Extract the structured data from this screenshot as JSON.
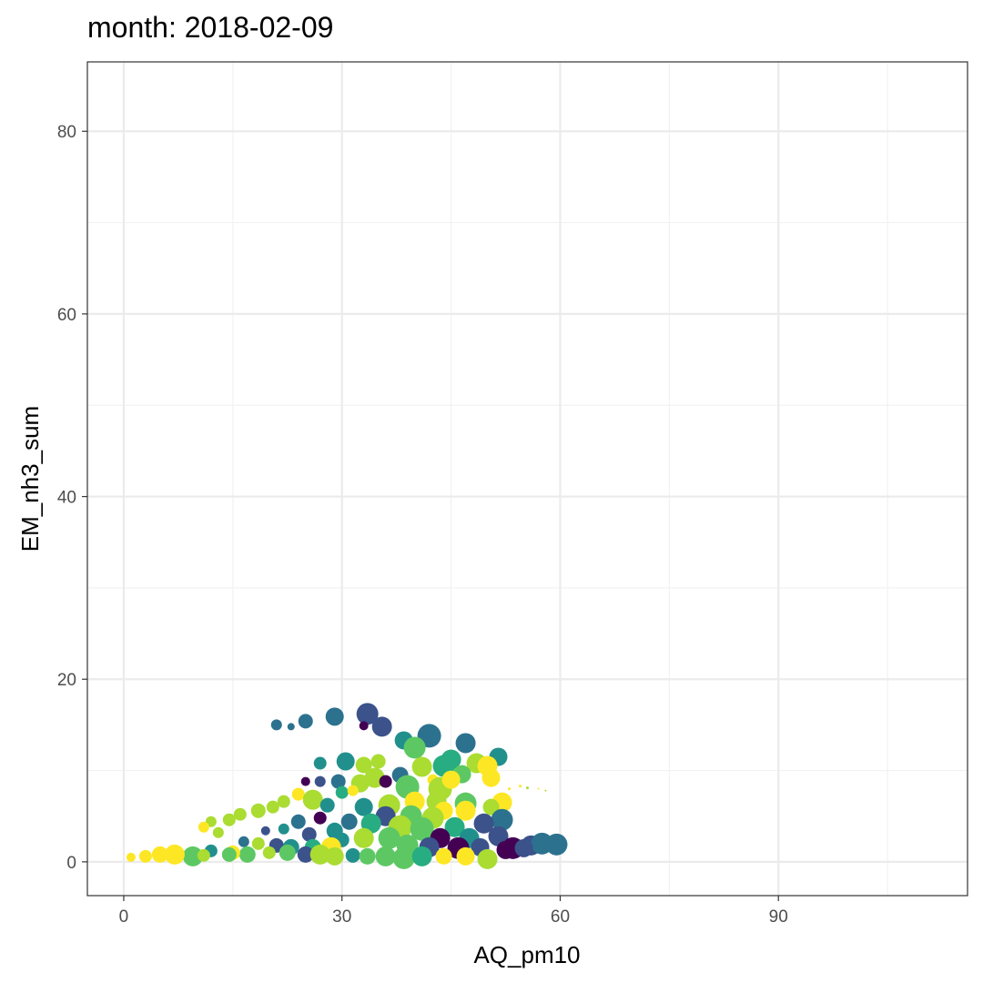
{
  "chart_data": {
    "type": "scatter",
    "title": "month: 2018-02-09",
    "xlabel": "AQ_pm10",
    "ylabel": "EM_nh3_sum",
    "xlim": [
      -5,
      116
    ],
    "ylim": [
      -3.7,
      87.6
    ],
    "x_ticks": [
      0,
      30,
      60,
      90
    ],
    "x_tick_labels": [
      "0",
      "30",
      "60",
      "90"
    ],
    "y_ticks": [
      0,
      20,
      40,
      60,
      80
    ],
    "y_tick_labels": [
      "0",
      "20",
      "40",
      "60",
      "80"
    ],
    "grid": true,
    "legend": "none",
    "color_scale": "viridis",
    "palette": [
      "#440154",
      "#3b528b",
      "#2c728e",
      "#21908d",
      "#27ad81",
      "#5dc863",
      "#aadc32",
      "#fde725"
    ],
    "points": [
      {
        "x": 33.5,
        "y": 16.2,
        "c": "#3b528b",
        "s": 24
      },
      {
        "x": 29.0,
        "y": 15.9,
        "c": "#2c728e",
        "s": 20
      },
      {
        "x": 35.5,
        "y": 14.8,
        "c": "#3b528b",
        "s": 22
      },
      {
        "x": 42.0,
        "y": 13.8,
        "c": "#2c728e",
        "s": 26
      },
      {
        "x": 47.0,
        "y": 13.0,
        "c": "#2c728e",
        "s": 22
      },
      {
        "x": 25.0,
        "y": 15.4,
        "c": "#2c728e",
        "s": 16
      },
      {
        "x": 21.0,
        "y": 15.0,
        "c": "#2c728e",
        "s": 12
      },
      {
        "x": 23.0,
        "y": 14.8,
        "c": "#2c728e",
        "s": 8
      },
      {
        "x": 33.0,
        "y": 14.9,
        "c": "#440154",
        "s": 10
      },
      {
        "x": 38.5,
        "y": 13.3,
        "c": "#21908d",
        "s": 20
      },
      {
        "x": 40.0,
        "y": 12.5,
        "c": "#5dc863",
        "s": 24
      },
      {
        "x": 45.0,
        "y": 11.2,
        "c": "#27ad81",
        "s": 22
      },
      {
        "x": 51.5,
        "y": 11.5,
        "c": "#21908d",
        "s": 20
      },
      {
        "x": 48.5,
        "y": 10.8,
        "c": "#aadc32",
        "s": 22
      },
      {
        "x": 50.0,
        "y": 10.5,
        "c": "#fde725",
        "s": 22
      },
      {
        "x": 50.5,
        "y": 9.2,
        "c": "#fde725",
        "s": 20
      },
      {
        "x": 30.5,
        "y": 11.0,
        "c": "#21908d",
        "s": 20
      },
      {
        "x": 27.0,
        "y": 10.8,
        "c": "#21908d",
        "s": 14
      },
      {
        "x": 35.0,
        "y": 11.0,
        "c": "#aadc32",
        "s": 16
      },
      {
        "x": 33.0,
        "y": 10.6,
        "c": "#aadc32",
        "s": 18
      },
      {
        "x": 41.0,
        "y": 10.4,
        "c": "#aadc32",
        "s": 22
      },
      {
        "x": 44.0,
        "y": 10.5,
        "c": "#27ad81",
        "s": 24
      },
      {
        "x": 46.5,
        "y": 9.6,
        "c": "#5dc863",
        "s": 20
      },
      {
        "x": 38.0,
        "y": 9.5,
        "c": "#2c728e",
        "s": 18
      },
      {
        "x": 42.5,
        "y": 9.0,
        "c": "#fde725",
        "s": 12
      },
      {
        "x": 25.0,
        "y": 8.8,
        "c": "#440154",
        "s": 10
      },
      {
        "x": 27.0,
        "y": 8.8,
        "c": "#3b528b",
        "s": 12
      },
      {
        "x": 29.5,
        "y": 8.8,
        "c": "#2c728e",
        "s": 16
      },
      {
        "x": 32.5,
        "y": 8.6,
        "c": "#aadc32",
        "s": 20
      },
      {
        "x": 34.5,
        "y": 9.2,
        "c": "#aadc32",
        "s": 22
      },
      {
        "x": 36.0,
        "y": 8.8,
        "c": "#440154",
        "s": 14
      },
      {
        "x": 39.0,
        "y": 8.2,
        "c": "#5dc863",
        "s": 26
      },
      {
        "x": 43.5,
        "y": 8.0,
        "c": "#aadc32",
        "s": 26
      },
      {
        "x": 45.0,
        "y": 9.0,
        "c": "#fde725",
        "s": 20
      },
      {
        "x": 30.0,
        "y": 7.6,
        "c": "#27ad81",
        "s": 14
      },
      {
        "x": 31.5,
        "y": 7.8,
        "c": "#fde725",
        "s": 12
      },
      {
        "x": 24.0,
        "y": 7.4,
        "c": "#fde725",
        "s": 14
      },
      {
        "x": 22.0,
        "y": 6.6,
        "c": "#aadc32",
        "s": 14
      },
      {
        "x": 20.5,
        "y": 6.0,
        "c": "#aadc32",
        "s": 14
      },
      {
        "x": 18.5,
        "y": 5.6,
        "c": "#aadc32",
        "s": 16
      },
      {
        "x": 16.0,
        "y": 5.2,
        "c": "#aadc32",
        "s": 14
      },
      {
        "x": 14.5,
        "y": 4.6,
        "c": "#aadc32",
        "s": 14
      },
      {
        "x": 12.0,
        "y": 4.4,
        "c": "#aadc32",
        "s": 12
      },
      {
        "x": 11.0,
        "y": 3.8,
        "c": "#fde725",
        "s": 12
      },
      {
        "x": 13.0,
        "y": 3.2,
        "c": "#aadc32",
        "s": 12
      },
      {
        "x": 26.0,
        "y": 6.8,
        "c": "#aadc32",
        "s": 22
      },
      {
        "x": 28.0,
        "y": 6.2,
        "c": "#21908d",
        "s": 16
      },
      {
        "x": 33.0,
        "y": 6.0,
        "c": "#21908d",
        "s": 20
      },
      {
        "x": 36.5,
        "y": 6.2,
        "c": "#aadc32",
        "s": 24
      },
      {
        "x": 40.0,
        "y": 6.6,
        "c": "#fde725",
        "s": 22
      },
      {
        "x": 43.0,
        "y": 6.6,
        "c": "#aadc32",
        "s": 22
      },
      {
        "x": 47.0,
        "y": 6.4,
        "c": "#5dc863",
        "s": 24
      },
      {
        "x": 52.0,
        "y": 6.5,
        "c": "#fde725",
        "s": 22
      },
      {
        "x": 50.5,
        "y": 6.0,
        "c": "#aadc32",
        "s": 18
      },
      {
        "x": 44.0,
        "y": 5.6,
        "c": "#fde725",
        "s": 20
      },
      {
        "x": 47.0,
        "y": 5.6,
        "c": "#fde725",
        "s": 22
      },
      {
        "x": 36.0,
        "y": 5.0,
        "c": "#3b528b",
        "s": 22
      },
      {
        "x": 39.5,
        "y": 5.0,
        "c": "#5dc863",
        "s": 24
      },
      {
        "x": 42.5,
        "y": 4.8,
        "c": "#aadc32",
        "s": 24
      },
      {
        "x": 27.0,
        "y": 4.8,
        "c": "#440154",
        "s": 14
      },
      {
        "x": 24.0,
        "y": 4.4,
        "c": "#2c728e",
        "s": 16
      },
      {
        "x": 31.0,
        "y": 4.4,
        "c": "#2c728e",
        "s": 18
      },
      {
        "x": 34.0,
        "y": 4.2,
        "c": "#27ad81",
        "s": 22
      },
      {
        "x": 52.0,
        "y": 4.6,
        "c": "#2c728e",
        "s": 24
      },
      {
        "x": 49.5,
        "y": 4.2,
        "c": "#3b528b",
        "s": 22
      },
      {
        "x": 45.5,
        "y": 3.8,
        "c": "#27ad81",
        "s": 22
      },
      {
        "x": 38.0,
        "y": 3.8,
        "c": "#aadc32",
        "s": 26
      },
      {
        "x": 41.0,
        "y": 3.6,
        "c": "#5dc863",
        "s": 26
      },
      {
        "x": 29.0,
        "y": 3.4,
        "c": "#21908d",
        "s": 18
      },
      {
        "x": 22.0,
        "y": 3.6,
        "c": "#21908d",
        "s": 12
      },
      {
        "x": 19.5,
        "y": 3.4,
        "c": "#3b528b",
        "s": 10
      },
      {
        "x": 25.5,
        "y": 3.0,
        "c": "#3b528b",
        "s": 16
      },
      {
        "x": 51.5,
        "y": 2.8,
        "c": "#3b528b",
        "s": 22
      },
      {
        "x": 47.5,
        "y": 2.6,
        "c": "#21908d",
        "s": 22
      },
      {
        "x": 43.5,
        "y": 2.6,
        "c": "#440154",
        "s": 22
      },
      {
        "x": 36.5,
        "y": 2.6,
        "c": "#5dc863",
        "s": 24
      },
      {
        "x": 33.0,
        "y": 2.6,
        "c": "#aadc32",
        "s": 22
      },
      {
        "x": 30.0,
        "y": 2.4,
        "c": "#21908d",
        "s": 16
      },
      {
        "x": 16.5,
        "y": 2.2,
        "c": "#2c728e",
        "s": 12
      },
      {
        "x": 18.5,
        "y": 2.0,
        "c": "#aadc32",
        "s": 14
      },
      {
        "x": 21.0,
        "y": 1.8,
        "c": "#3b528b",
        "s": 16
      },
      {
        "x": 23.0,
        "y": 1.6,
        "c": "#21908d",
        "s": 18
      },
      {
        "x": 26.0,
        "y": 1.6,
        "c": "#27ad81",
        "s": 18
      },
      {
        "x": 28.5,
        "y": 1.6,
        "c": "#fde725",
        "s": 22
      },
      {
        "x": 39.0,
        "y": 1.8,
        "c": "#5dc863",
        "s": 24
      },
      {
        "x": 42.0,
        "y": 1.6,
        "c": "#3b528b",
        "s": 22
      },
      {
        "x": 46.0,
        "y": 1.5,
        "c": "#440154",
        "s": 24
      },
      {
        "x": 49.0,
        "y": 1.6,
        "c": "#3b528b",
        "s": 20
      },
      {
        "x": 53.5,
        "y": 1.5,
        "c": "#440154",
        "s": 24
      },
      {
        "x": 56.0,
        "y": 1.8,
        "c": "#3b528b",
        "s": 22
      },
      {
        "x": 57.5,
        "y": 2.0,
        "c": "#2c728e",
        "s": 24
      },
      {
        "x": 59.5,
        "y": 1.9,
        "c": "#2c728e",
        "s": 24
      },
      {
        "x": 55.0,
        "y": 1.5,
        "c": "#3b528b",
        "s": 20
      },
      {
        "x": 52.5,
        "y": 1.3,
        "c": "#440154",
        "s": 20
      },
      {
        "x": 20.0,
        "y": 1.0,
        "c": "#aadc32",
        "s": 14
      },
      {
        "x": 22.5,
        "y": 1.0,
        "c": "#5dc863",
        "s": 18
      },
      {
        "x": 25.0,
        "y": 0.8,
        "c": "#3b528b",
        "s": 18
      },
      {
        "x": 27.0,
        "y": 0.8,
        "c": "#aadc32",
        "s": 22
      },
      {
        "x": 29.0,
        "y": 0.6,
        "c": "#aadc32",
        "s": 20
      },
      {
        "x": 31.5,
        "y": 0.7,
        "c": "#21908d",
        "s": 16
      },
      {
        "x": 33.5,
        "y": 0.6,
        "c": "#5dc863",
        "s": 18
      },
      {
        "x": 36.0,
        "y": 0.6,
        "c": "#5dc863",
        "s": 22
      },
      {
        "x": 38.5,
        "y": 0.4,
        "c": "#5dc863",
        "s": 24
      },
      {
        "x": 41.0,
        "y": 0.6,
        "c": "#27ad81",
        "s": 22
      },
      {
        "x": 44.0,
        "y": 0.6,
        "c": "#fde725",
        "s": 18
      },
      {
        "x": 47.0,
        "y": 0.6,
        "c": "#fde725",
        "s": 20
      },
      {
        "x": 50.0,
        "y": 0.3,
        "c": "#aadc32",
        "s": 22
      },
      {
        "x": 17.0,
        "y": 0.8,
        "c": "#5dc863",
        "s": 18
      },
      {
        "x": 15.0,
        "y": 1.0,
        "c": "#fde725",
        "s": 16
      },
      {
        "x": 12.0,
        "y": 1.2,
        "c": "#21908d",
        "s": 14
      },
      {
        "x": 9.5,
        "y": 0.6,
        "c": "#5dc863",
        "s": 22
      },
      {
        "x": 7.0,
        "y": 0.8,
        "c": "#fde725",
        "s": 22
      },
      {
        "x": 5.0,
        "y": 0.8,
        "c": "#fde725",
        "s": 18
      },
      {
        "x": 3.0,
        "y": 0.6,
        "c": "#fde725",
        "s": 14
      },
      {
        "x": 1.0,
        "y": 0.5,
        "c": "#fde725",
        "s": 10
      },
      {
        "x": 11.0,
        "y": 0.7,
        "c": "#aadc32",
        "s": 14
      },
      {
        "x": 14.5,
        "y": 0.8,
        "c": "#5dc863",
        "s": 16
      },
      {
        "x": 53.0,
        "y": 8.0,
        "c": "#fde725",
        "s": 3
      },
      {
        "x": 54.5,
        "y": 8.3,
        "c": "#fde725",
        "s": 3
      },
      {
        "x": 55.5,
        "y": 8.1,
        "c": "#aadc32",
        "s": 3
      },
      {
        "x": 57.0,
        "y": 8.0,
        "c": "#fde725",
        "s": 2
      },
      {
        "x": 58.0,
        "y": 7.8,
        "c": "#aadc32",
        "s": 2
      }
    ]
  }
}
